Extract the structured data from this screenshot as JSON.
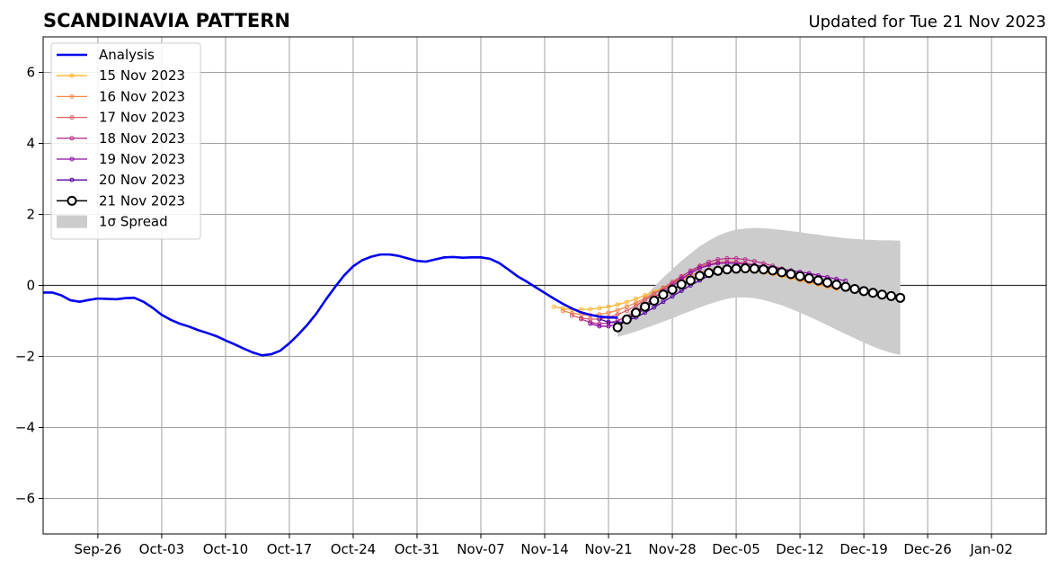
{
  "chart_data": {
    "type": "line",
    "title": "SCANDINAVIA PATTERN",
    "subtitle": "Updated for Tue 21 Nov 2023",
    "xlabel": "",
    "ylabel": "",
    "x_axis": {
      "type": "date",
      "range": [
        "2023-09-20",
        "2024-01-08"
      ],
      "ticks": [
        "2023-09-26",
        "2023-10-03",
        "2023-10-10",
        "2023-10-17",
        "2023-10-24",
        "2023-10-31",
        "2023-11-07",
        "2023-11-14",
        "2023-11-21",
        "2023-11-28",
        "2023-12-05",
        "2023-12-12",
        "2023-12-19",
        "2023-12-26",
        "2024-01-02"
      ],
      "tick_labels": [
        "Sep-26",
        "Oct-03",
        "Oct-10",
        "Oct-17",
        "Oct-24",
        "Oct-31",
        "Nov-07",
        "Nov-14",
        "Nov-21",
        "Nov-28",
        "Dec-05",
        "Dec-12",
        "Dec-19",
        "Dec-26",
        "Jan-02"
      ]
    },
    "y_axis": {
      "range": [
        -7,
        7
      ],
      "ticks": [
        -6,
        -4,
        -2,
        0,
        2,
        4,
        6
      ],
      "tick_labels": [
        "−6",
        "−4",
        "−2",
        "0",
        "2",
        "4",
        "6"
      ]
    },
    "grid": true,
    "zero_line": true,
    "legend_position": "top-left",
    "legend": [
      "Analysis",
      "15 Nov 2023",
      "16 Nov 2023",
      "17 Nov 2023",
      "18 Nov 2023",
      "19 Nov 2023",
      "20 Nov 2023",
      "21 Nov 2023",
      "1σ Spread"
    ],
    "analysis": {
      "name": "Analysis",
      "color": "#0000ee",
      "start": "2023-09-20",
      "values": [
        -0.2,
        -0.2,
        -0.28,
        -0.42,
        -0.46,
        -0.41,
        -0.37,
        -0.38,
        -0.39,
        -0.36,
        -0.35,
        -0.46,
        -0.63,
        -0.83,
        -0.97,
        -1.08,
        -1.16,
        -1.26,
        -1.34,
        -1.43,
        -1.55,
        -1.66,
        -1.78,
        -1.89,
        -1.97,
        -1.94,
        -1.84,
        -1.63,
        -1.38,
        -1.1,
        -0.78,
        -0.4,
        -0.05,
        0.28,
        0.54,
        0.71,
        0.81,
        0.87,
        0.87,
        0.83,
        0.76,
        0.69,
        0.67,
        0.73,
        0.79,
        0.8,
        0.78,
        0.79,
        0.79,
        0.75,
        0.63,
        0.45,
        0.26,
        0.11,
        -0.05,
        -0.21,
        -0.37,
        -0.52,
        -0.65,
        -0.76,
        -0.83,
        -0.88,
        -0.9,
        -0.91
      ]
    },
    "series": [
      {
        "name": "15 Nov 2023",
        "color": "#fdb42f",
        "start": "2023-11-15",
        "values": [
          -0.6,
          -0.65,
          -0.68,
          -0.68,
          -0.67,
          -0.64,
          -0.6,
          -0.54,
          -0.47,
          -0.38,
          -0.28,
          -0.17,
          -0.06,
          0.05,
          0.15,
          0.23,
          0.3,
          0.36,
          0.4,
          0.43,
          0.43,
          0.42,
          0.4,
          0.36,
          0.32,
          0.26,
          0.2,
          0.14,
          0.08,
          0.02,
          -0.04,
          -0.1
        ]
      },
      {
        "name": "16 Nov 2023",
        "color": "#f48849",
        "start": "2023-11-16",
        "values": [
          -0.72,
          -0.78,
          -0.82,
          -0.84,
          -0.82,
          -0.77,
          -0.7,
          -0.6,
          -0.49,
          -0.36,
          -0.22,
          -0.08,
          0.06,
          0.18,
          0.29,
          0.37,
          0.44,
          0.48,
          0.5,
          0.5,
          0.48,
          0.45,
          0.4,
          0.35,
          0.29,
          0.23,
          0.16,
          0.1,
          0.04,
          -0.02,
          -0.08
        ]
      },
      {
        "name": "17 Nov 2023",
        "color": "#db5c68",
        "start": "2023-11-17",
        "values": [
          -0.85,
          -0.92,
          -0.95,
          -0.95,
          -0.9,
          -0.82,
          -0.71,
          -0.57,
          -0.41,
          -0.24,
          -0.07,
          0.1,
          0.26,
          0.4,
          0.52,
          0.6,
          0.65,
          0.67,
          0.66,
          0.63,
          0.58,
          0.52,
          0.45,
          0.37,
          0.29,
          0.21,
          0.13,
          0.06,
          -0.01,
          -0.07
        ]
      },
      {
        "name": "18 Nov 2023",
        "color": "#b83289",
        "start": "2023-11-18",
        "values": [
          -0.95,
          -1.04,
          -1.08,
          -1.06,
          -0.99,
          -0.88,
          -0.73,
          -0.55,
          -0.35,
          -0.15,
          0.05,
          0.24,
          0.41,
          0.55,
          0.66,
          0.73,
          0.76,
          0.76,
          0.73,
          0.68,
          0.62,
          0.55,
          0.47,
          0.39,
          0.31,
          0.23,
          0.15,
          0.07,
          0.0
        ]
      },
      {
        "name": "19 Nov 2023",
        "color": "#8b0aa5",
        "start": "2023-11-19",
        "values": [
          -1.08,
          -1.15,
          -1.15,
          -1.09,
          -0.98,
          -0.83,
          -0.65,
          -0.45,
          -0.23,
          -0.02,
          0.18,
          0.35,
          0.48,
          0.57,
          0.62,
          0.63,
          0.62,
          0.6,
          0.57,
          0.54,
          0.5,
          0.46,
          0.42,
          0.38,
          0.34,
          0.28,
          0.23,
          0.18,
          0.13
        ]
      },
      {
        "name": "20 Nov 2023",
        "color": "#5402a3",
        "start": "2023-11-20",
        "values": [
          -0.95,
          -1.03,
          -1.06,
          -1.0,
          -0.9,
          -0.77,
          -0.62,
          -0.46,
          -0.31,
          -0.15,
          0.0,
          0.14,
          0.27,
          0.37,
          0.44,
          0.48,
          0.5,
          0.49,
          0.47,
          0.43,
          0.38,
          0.33,
          0.27,
          0.21,
          0.15,
          0.1,
          0.05,
          0.0,
          -0.05
        ]
      },
      {
        "name": "21 Nov 2023",
        "color": "#000000",
        "start": "2023-11-22",
        "values": [
          -1.18,
          -0.96,
          -0.77,
          -0.6,
          -0.43,
          -0.26,
          -0.12,
          0.03,
          0.14,
          0.27,
          0.35,
          0.41,
          0.45,
          0.47,
          0.48,
          0.47,
          0.45,
          0.42,
          0.37,
          0.32,
          0.26,
          0.2,
          0.14,
          0.08,
          0.02,
          -0.04,
          -0.1,
          -0.16,
          -0.21,
          -0.26,
          -0.3,
          -0.35
        ]
      }
    ],
    "spread": {
      "name": "1σ Spread",
      "color": "#cccccc",
      "start": "2023-11-22",
      "upper": [
        -1.07,
        -0.82,
        -0.57,
        -0.31,
        -0.04,
        0.22,
        0.46,
        0.69,
        0.9,
        1.1,
        1.26,
        1.4,
        1.5,
        1.57,
        1.6,
        1.62,
        1.61,
        1.59,
        1.56,
        1.53,
        1.5,
        1.46,
        1.43,
        1.39,
        1.36,
        1.33,
        1.31,
        1.29,
        1.28,
        1.27,
        1.27,
        1.26
      ],
      "lower": [
        -1.45,
        -1.38,
        -1.3,
        -1.21,
        -1.12,
        -1.02,
        -0.93,
        -0.82,
        -0.72,
        -0.62,
        -0.53,
        -0.45,
        -0.38,
        -0.34,
        -0.34,
        -0.36,
        -0.41,
        -0.48,
        -0.56,
        -0.66,
        -0.77,
        -0.88,
        -1.0,
        -1.12,
        -1.25,
        -1.37,
        -1.49,
        -1.61,
        -1.72,
        -1.82,
        -1.9,
        -1.96
      ]
    }
  }
}
